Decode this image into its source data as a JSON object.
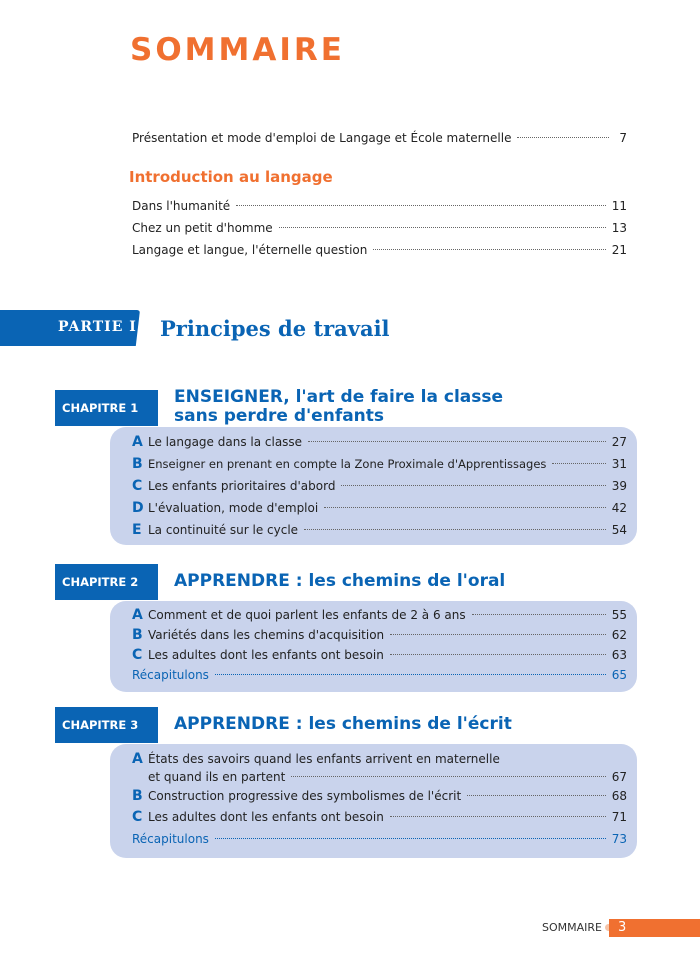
{
  "title": "SOMMAIRE",
  "front": [
    {
      "text": "Présentation et mode d'emploi de Langage et École maternelle",
      "page": "7"
    }
  ],
  "intro": {
    "heading": "Introduction au langage",
    "items": [
      {
        "text": "Dans l'humanité",
        "page": "11"
      },
      {
        "text": "Chez un petit d'homme",
        "page": "13"
      },
      {
        "text": "Langage et langue, l'éternelle question",
        "page": "21"
      }
    ]
  },
  "part": {
    "label": "PARTIE I",
    "title": "Principes de travail"
  },
  "chapters": [
    {
      "label": "CHAPITRE 1",
      "title_line1": "ENSEIGNER, l'art de faire la classe",
      "title_line2": "sans perdre d'enfants",
      "items": [
        {
          "letter": "A",
          "text": "Le langage dans la classe",
          "page": "27"
        },
        {
          "letter": "B",
          "text": "Enseigner en prenant en compte la Zone Proximale d'Apprentissages",
          "page": "31"
        },
        {
          "letter": "C",
          "text": "Les enfants prioritaires d'abord",
          "page": "39"
        },
        {
          "letter": "D",
          "text": "L'évaluation, mode d'emploi",
          "page": "42"
        },
        {
          "letter": "E",
          "text": "La continuité sur le cycle",
          "page": "54"
        }
      ]
    },
    {
      "label": "CHAPITRE 2",
      "title_line1": "APPRENDRE : les chemins de l'oral",
      "items": [
        {
          "letter": "A",
          "text": "Comment et de quoi parlent les enfants de 2 à 6 ans",
          "page": "55"
        },
        {
          "letter": "B",
          "text": "Variétés dans les chemins d'acquisition",
          "page": "62"
        },
        {
          "letter": "C",
          "text": "Les adultes dont les enfants ont besoin",
          "page": "63"
        }
      ],
      "recap": {
        "text": "Récapitulons",
        "page": "65"
      }
    },
    {
      "label": "CHAPITRE 3",
      "title_line1": "APPRENDRE : les chemins de l'écrit",
      "items": [
        {
          "letter": "A",
          "text": "États des savoirs quand les enfants arrivent en maternelle",
          "text2": "et quand ils en partent",
          "page": "67"
        },
        {
          "letter": "B",
          "text": "Construction progressive des symbolismes de l'écrit",
          "page": "68"
        },
        {
          "letter": "C",
          "text": "Les adultes dont les enfants ont besoin",
          "page": "71"
        }
      ],
      "recap": {
        "text": "Récapitulons",
        "page": "73"
      }
    }
  ],
  "footer": {
    "label": "SOMMAIRE",
    "page": "3"
  },
  "colors": {
    "orange": "#f07030",
    "blue": "#0a64b4",
    "box": "#c9d3ec"
  }
}
